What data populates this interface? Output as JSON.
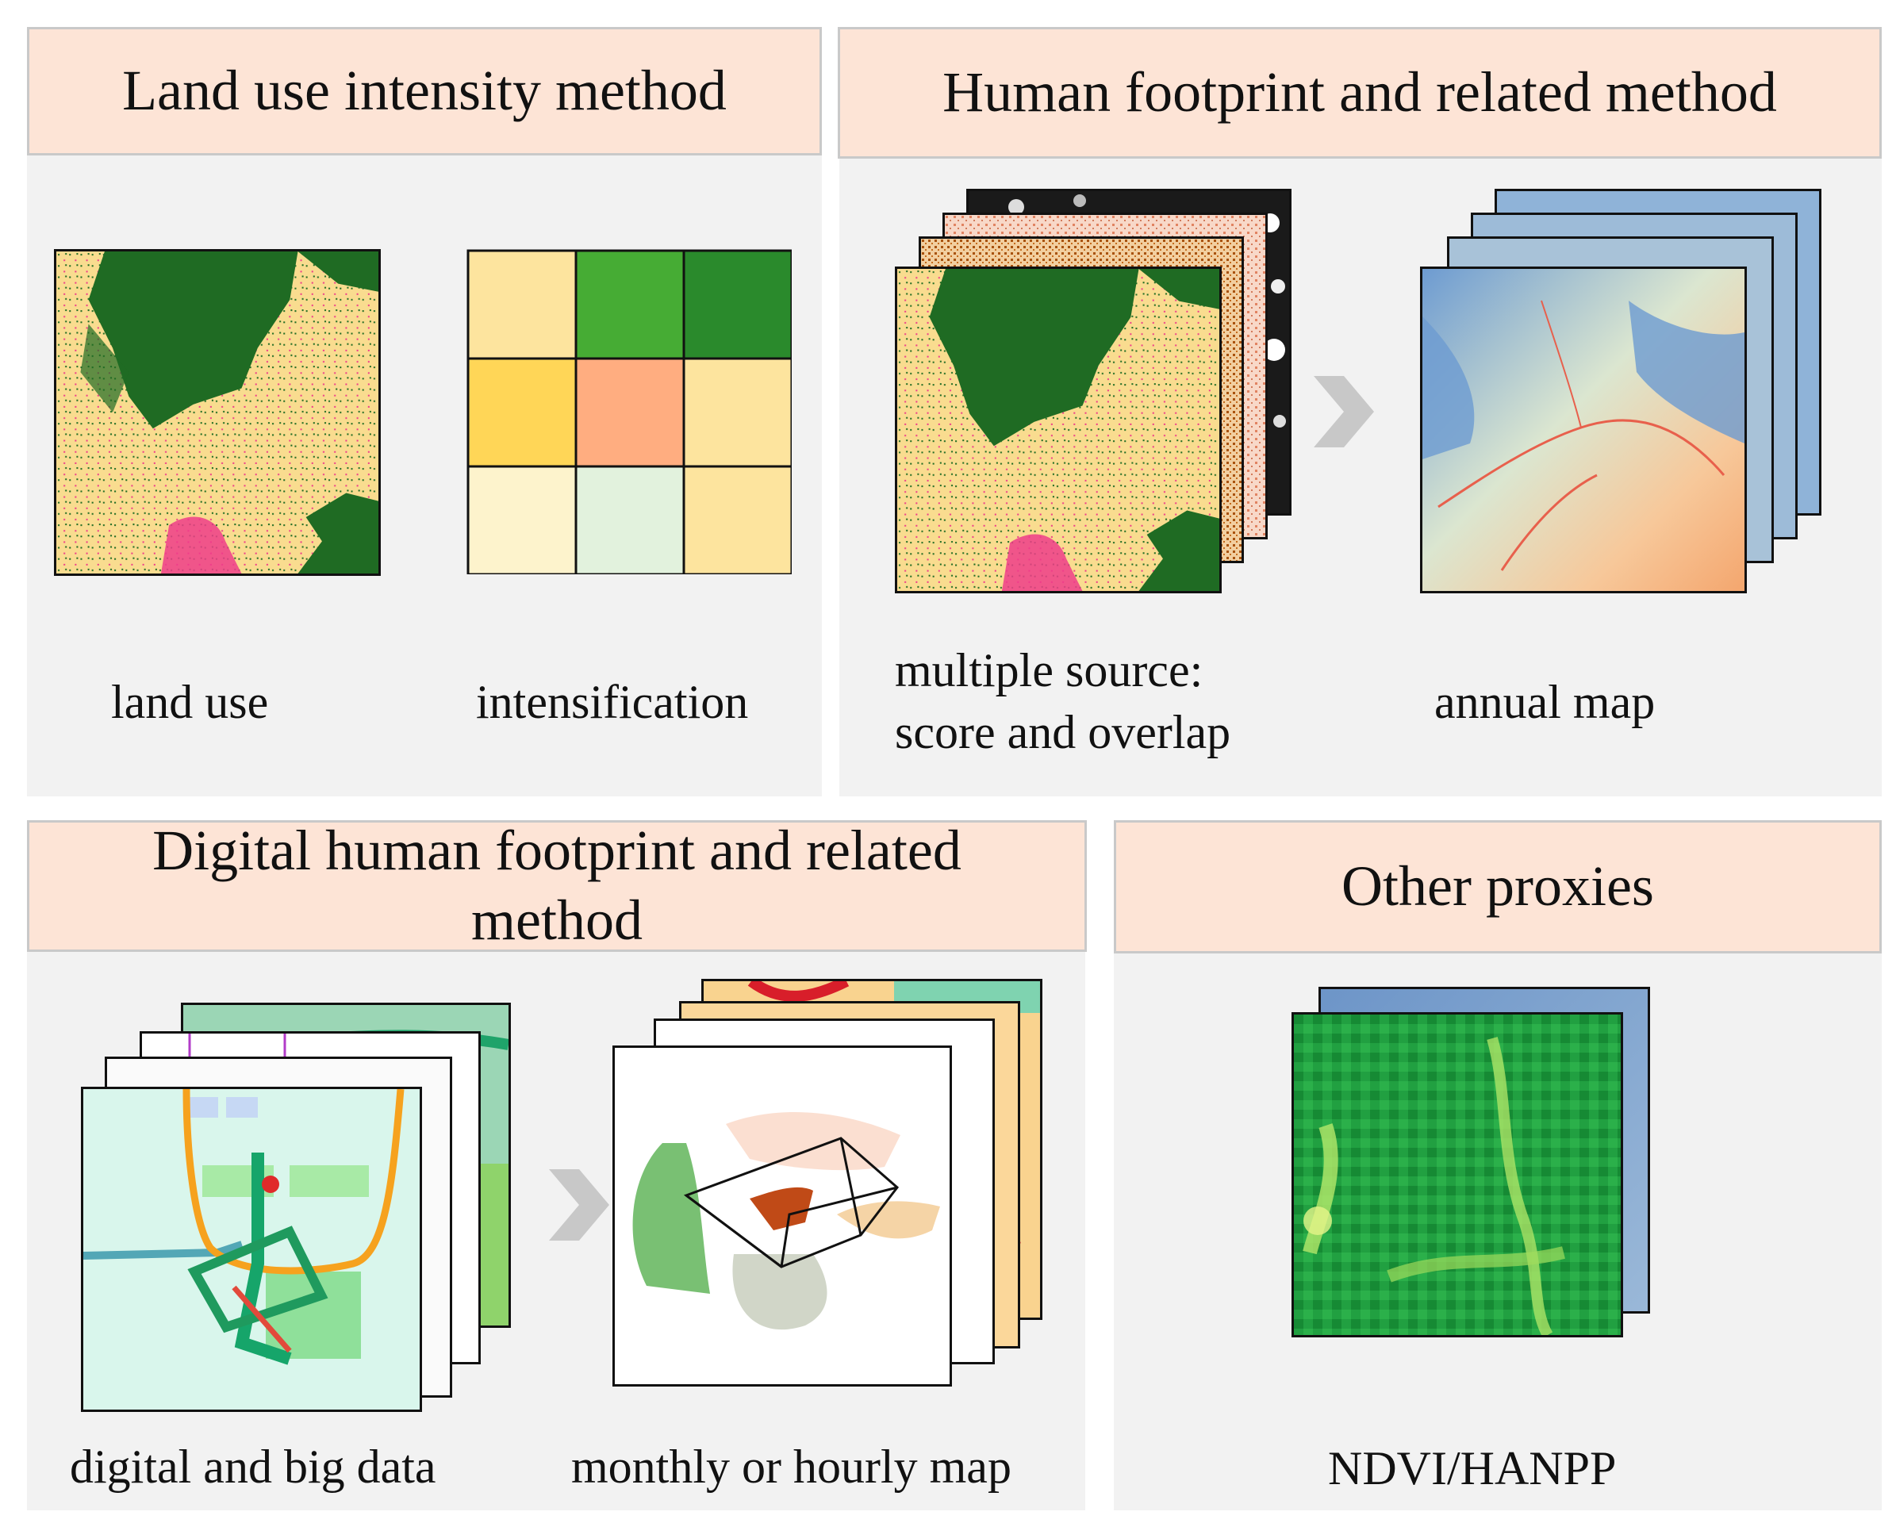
{
  "panels": {
    "land_use": {
      "title": "Land use intensity method",
      "captions": [
        "land use",
        "intensification"
      ]
    },
    "human_footprint": {
      "title": "Human footprint and related method",
      "captions": [
        "multiple source:",
        "score and overlap",
        "annual map"
      ]
    },
    "digital": {
      "title": "Digital human footprint and related method",
      "captions": [
        "digital and big data",
        "monthly or hourly map"
      ]
    },
    "other": {
      "title": "Other proxies",
      "captions": [
        "NDVI/HANPP"
      ]
    }
  },
  "grid_colors": [
    "#fde49e",
    "#46ac34",
    "#2a8a2c",
    "#ffd657",
    "#ffad80",
    "#fde49e",
    "#fdf3cc",
    "#e2f2dd",
    "#fde49e"
  ],
  "colors": {
    "header_fill": "#fde4d6",
    "panel_fill": "#f2f2f2",
    "forest": "#1f6b23",
    "cropland": "#f9dc8f",
    "urban": "#ee3d8a",
    "arrow": "#c8c8c8"
  }
}
